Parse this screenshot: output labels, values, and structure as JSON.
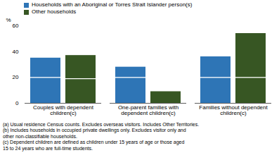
{
  "chart_data": {
    "type": "bar",
    "stacked": true,
    "categories": [
      "Couples with dependent\nchildren(c)",
      "One-parent families with\ndependent children(c)",
      "Families without dependent\nchildren(c)"
    ],
    "series": [
      {
        "name": "Households with an Aboriginal or Torres Strait Islander person(s)",
        "color": "#2e75b6",
        "values": [
          [
            20,
            15
          ],
          [
            20,
            8
          ],
          [
            20,
            16
          ]
        ]
      },
      {
        "name": "Other households",
        "color": "#375623",
        "values": [
          [
            19,
            18
          ],
          [
            0,
            9
          ],
          [
            20,
            34
          ]
        ]
      }
    ],
    "y_label": "%",
    "ylim": [
      0,
      60
    ],
    "yticks": [
      0,
      20,
      40,
      60
    ],
    "grid": false,
    "legend": "top",
    "caption": "(a) Usual residence Census counts. Excludes overseas visitors. Includes Other Territories.\n(b) Includes households in occupied private dwellings only. Excludes visitor only and\nother non-classifiable households.\n(c) Dependent children are defined as children under 15 years of age or those aged\n15 to 24 years who are full-time students."
  }
}
